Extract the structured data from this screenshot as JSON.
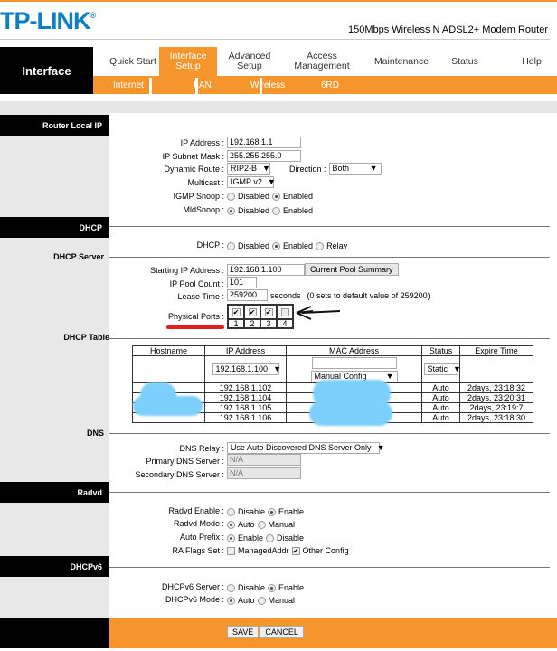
{
  "brand": {
    "logo": "TP-LINK",
    "model": "150Mbps Wireless N ADSL2+ Modem Router"
  },
  "header": {
    "section": "Interface",
    "tabs": [
      {
        "label": "Quick Start"
      },
      {
        "label": "Interface Setup",
        "active": true
      },
      {
        "label": "Advanced Setup"
      },
      {
        "label": "Access Management"
      },
      {
        "label": "Maintenance"
      },
      {
        "label": "Status"
      },
      {
        "label": "Help"
      }
    ],
    "subtabs": [
      "Internet",
      "LAN",
      "Wireless",
      "6RD"
    ],
    "accent": "#f7952d"
  },
  "router_local_ip": {
    "title": "Router Local IP",
    "ip_label": "IP Address",
    "ip": "192.168.1.1",
    "mask_label": "IP Subnet Mask",
    "mask": "255.255.255.0",
    "route_label": "Dynamic Route",
    "route": "RIP2-B",
    "direction_label": "Direction",
    "direction": "Both",
    "multicast_label": "Multicast",
    "multicast": "IGMP v2",
    "igmp_label": "IGMP Snoop",
    "igmp_selected": "Enabled",
    "mld_label": "MldSnoop",
    "mld_selected": "Disabled",
    "opt_disabled": "Disabled",
    "opt_enabled": "Enabled"
  },
  "dhcp": {
    "title": "DHCP",
    "label": "DHCP",
    "opts": [
      "Disabled",
      "Enabled",
      "Relay"
    ],
    "selected": "Enabled"
  },
  "dhcp_server": {
    "title": "DHCP Server",
    "start_label": "Starting IP Address",
    "start": "192.168.1.100",
    "pool_button": "Current Pool Summary",
    "count_label": "IP Pool Count",
    "count": "101",
    "lease_label": "Lease Time",
    "lease": "259200",
    "lease_unit": "seconds",
    "lease_note": "(0 sets to default value of 259200)",
    "ports_label": "Physical Ports",
    "ports": [
      {
        "n": "1",
        "checked": true
      },
      {
        "n": "2",
        "checked": true
      },
      {
        "n": "3",
        "checked": true
      },
      {
        "n": "4",
        "checked": false
      }
    ]
  },
  "dhcp_table": {
    "title": "DHCP Table",
    "headers": [
      "Hostname",
      "IP Address",
      "MAC Address",
      "Status",
      "Expire Time"
    ],
    "input_row": {
      "ip": "192.168.1.100",
      "mac_mode": "Manual Config",
      "status": "Static"
    },
    "rows": [
      {
        "ip": "192.168.1.102",
        "status": "Auto",
        "expire": "2days, 23:18:32"
      },
      {
        "ip": "192.168.1.104",
        "status": "Auto",
        "expire": "2days, 23:20:31"
      },
      {
        "ip": "192.168.1.105",
        "status": "Auto",
        "expire": "2days, 23:19:7"
      },
      {
        "ip": "192.168.1.106",
        "status": "Auto",
        "expire": "2days, 23:18:30"
      }
    ]
  },
  "dns": {
    "title": "DNS",
    "relay_label": "DNS Relay",
    "relay": "Use Auto Discovered DNS Server Only",
    "primary_label": "Primary DNS Server",
    "primary": "N/A",
    "secondary_label": "Secondary DNS Server",
    "secondary": "N/A"
  },
  "radvd": {
    "title": "Radvd",
    "enable_label": "Radvd Enable",
    "mode_label": "Radvd Mode",
    "prefix_label": "Auto Prefix",
    "flags_label": "RA Flags Set",
    "disable": "Disable",
    "enable": "Enable",
    "auto": "Auto",
    "manual": "Manual",
    "managed": "ManagedAddr",
    "other": "Other Config"
  },
  "dhcpv6": {
    "title": "DHCPv6",
    "server_label": "DHCPv6 Server",
    "mode_label": "DHCPv6 Mode",
    "disable": "Disable",
    "enable": "Enable",
    "auto": "Auto",
    "manual": "Manual"
  },
  "footer": {
    "save": "SAVE",
    "cancel": "CANCEL"
  }
}
